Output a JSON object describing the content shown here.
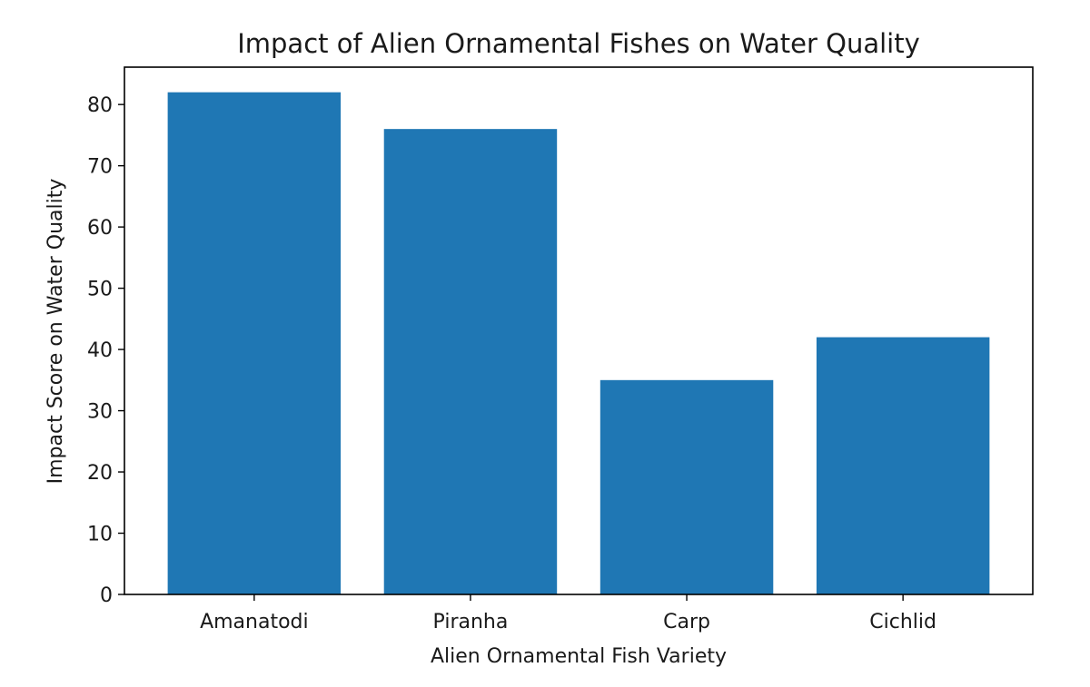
{
  "chart_data": {
    "type": "bar",
    "title": "Impact of Alien Ornamental Fishes on Water Quality",
    "xlabel": "Alien Ornamental Fish Variety",
    "ylabel": "Impact Score on Water Quality",
    "categories": [
      "Amanatodi",
      "Piranha",
      "Carp",
      "Cichlid"
    ],
    "values": [
      82,
      76,
      35,
      42
    ],
    "ylim": [
      0,
      86.1
    ],
    "yticks": [
      0,
      10,
      20,
      30,
      40,
      50,
      60,
      70,
      80
    ],
    "grid": false,
    "legend": "none",
    "bar_color": "#1f77b4",
    "axis_color": "#000000"
  }
}
